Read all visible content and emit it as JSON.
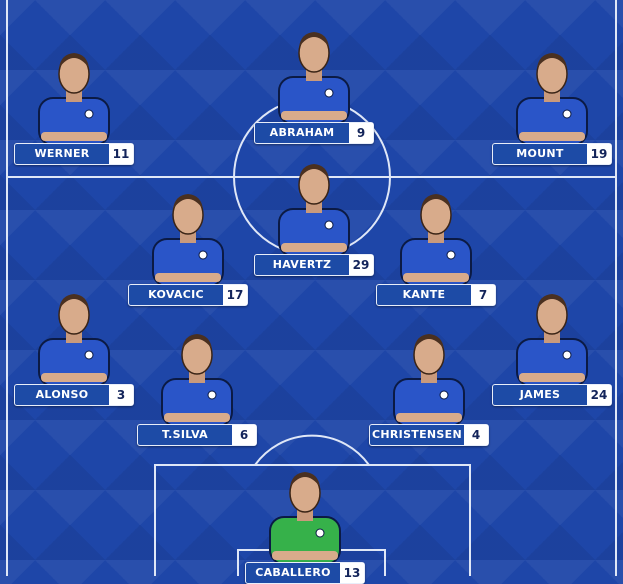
{
  "colors": {
    "pitch": "#1e46a8",
    "kit": "#2a55c8",
    "gk_kit": "#36b14a",
    "label_bg": "#1d4ba6"
  },
  "players": [
    {
      "name": "WERNER",
      "number": "11",
      "role": "forward"
    },
    {
      "name": "ABRAHAM",
      "number": "9",
      "role": "forward"
    },
    {
      "name": "MOUNT",
      "number": "19",
      "role": "forward"
    },
    {
      "name": "KOVACIC",
      "number": "17",
      "role": "midfielder"
    },
    {
      "name": "HAVERTZ",
      "number": "29",
      "role": "midfielder"
    },
    {
      "name": "KANTE",
      "number": "7",
      "role": "midfielder"
    },
    {
      "name": "ALONSO",
      "number": "3",
      "role": "defender"
    },
    {
      "name": "T.SILVA",
      "number": "6",
      "role": "defender"
    },
    {
      "name": "CHRISTENSEN",
      "number": "4",
      "role": "defender"
    },
    {
      "name": "JAMES",
      "number": "24",
      "role": "defender"
    },
    {
      "name": "CABALLERO",
      "number": "13",
      "role": "goalkeeper"
    }
  ]
}
